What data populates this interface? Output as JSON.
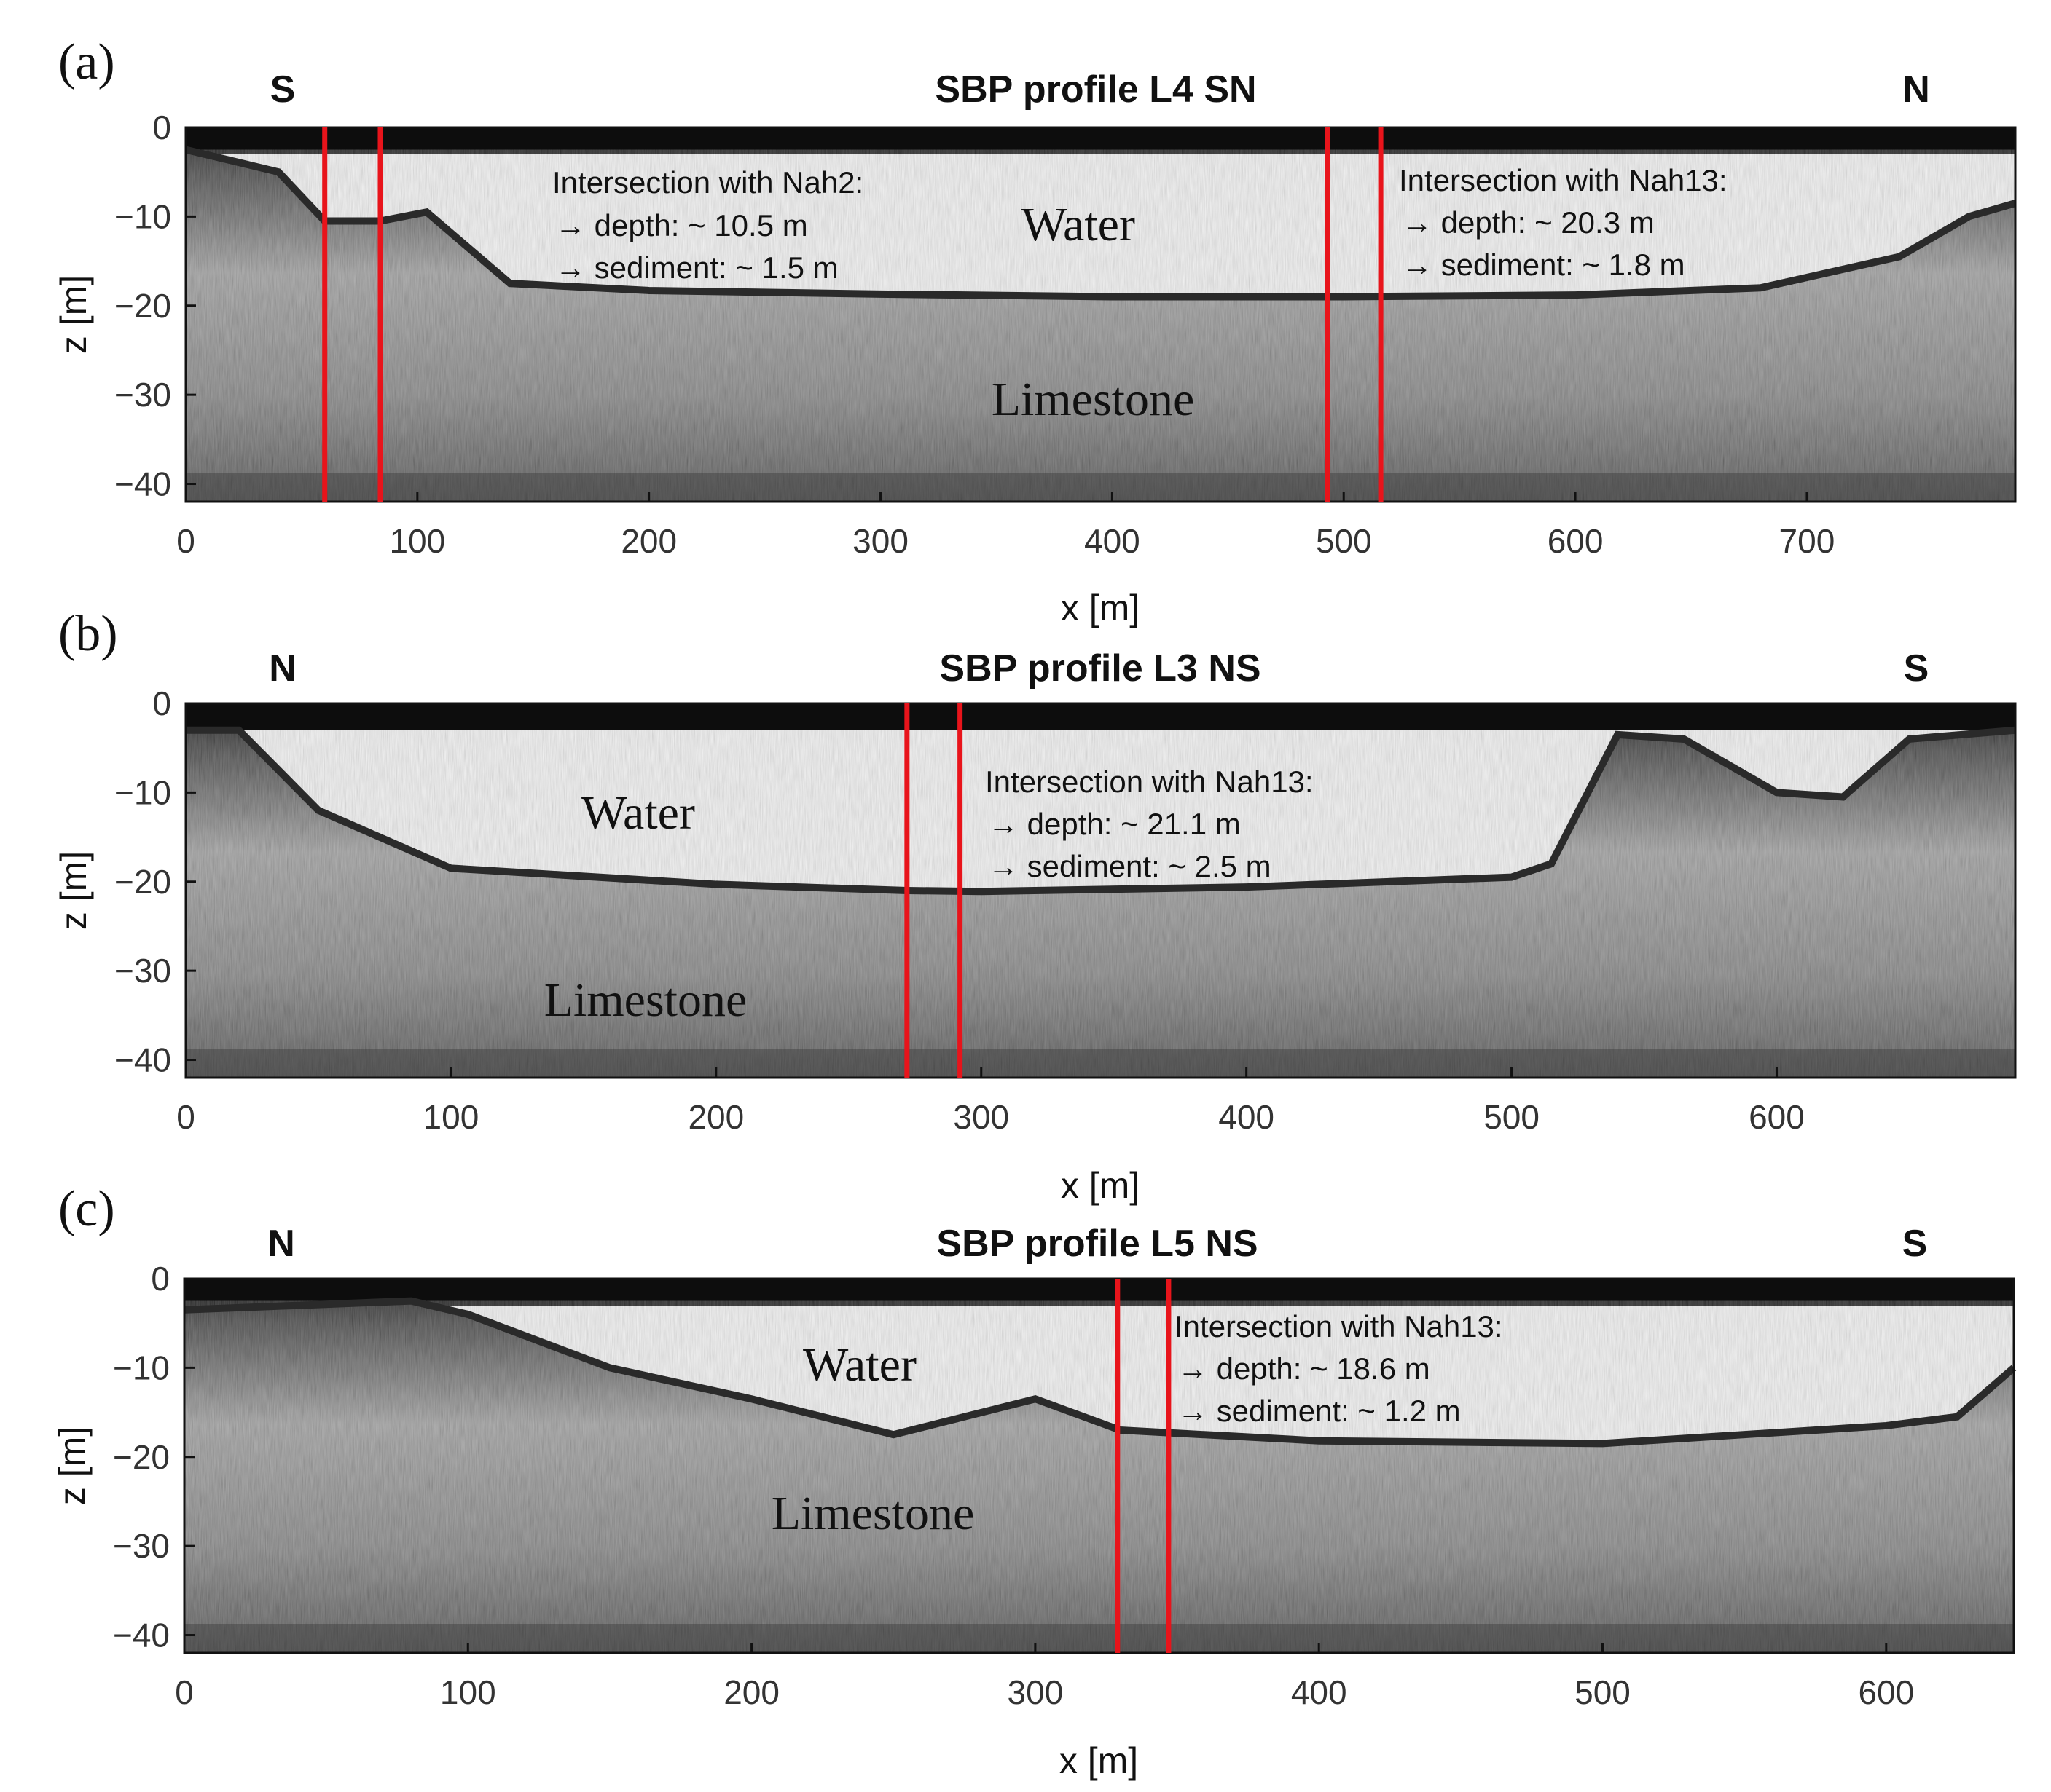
{
  "panels": [
    {
      "letter": "(a)",
      "title": "SBP profile L4 SN",
      "left_dir": "S",
      "right_dir": "N",
      "xlabel": "x [m]",
      "ylabel": "z [m]",
      "xlim": [
        0,
        790
      ],
      "ylim": [
        -42,
        0
      ],
      "xticks": [
        0,
        100,
        200,
        300,
        400,
        500,
        600,
        700
      ],
      "yticks": [
        0,
        -10,
        -20,
        -30,
        -40
      ],
      "intersection_lines_x": [
        60,
        84,
        493,
        516
      ],
      "labels": {
        "water": "Water",
        "limestone": "Limestone"
      },
      "annotations": [
        {
          "title": "Intersection with Nah2:",
          "depth": "→ depth: ~ 10.5 m",
          "sediment": "→ sediment: ~ 1.5 m"
        },
        {
          "title": "Intersection with Nah13:",
          "depth": "→ depth: ~ 20.3 m",
          "sediment": "→ sediment: ~ 1.8 m"
        }
      ]
    },
    {
      "letter": "(b)",
      "title": "SBP profile L3 NS",
      "left_dir": "N",
      "right_dir": "S",
      "xlabel": "x [m]",
      "ylabel": "z [m]",
      "xlim": [
        0,
        690
      ],
      "ylim": [
        -42,
        0
      ],
      "xticks": [
        0,
        100,
        200,
        300,
        400,
        500,
        600
      ],
      "yticks": [
        0,
        -10,
        -20,
        -30,
        -40
      ],
      "intersection_lines_x": [
        272,
        292
      ],
      "labels": {
        "water": "Water",
        "limestone": "Limestone"
      },
      "annotations": [
        {
          "title": "Intersection with Nah13:",
          "depth": "→ depth: ~ 21.1 m",
          "sediment": "→ sediment: ~ 2.5 m"
        }
      ]
    },
    {
      "letter": "(c)",
      "title": "SBP profile L5 NS",
      "left_dir": "N",
      "right_dir": "S",
      "xlabel": "x [m]",
      "ylabel": "z [m]",
      "xlim": [
        0,
        645
      ],
      "ylim": [
        -42,
        0
      ],
      "xticks": [
        0,
        100,
        200,
        300,
        400,
        500,
        600
      ],
      "yticks": [
        0,
        -10,
        -20,
        -30,
        -40
      ],
      "intersection_lines_x": [
        329,
        347
      ],
      "labels": {
        "water": "Water",
        "limestone": "Limestone"
      },
      "annotations": [
        {
          "title": "Intersection with Nah13:",
          "depth": "→ depth: ~ 18.6 m",
          "sediment": "→ sediment: ~ 1.2 m"
        }
      ]
    }
  ],
  "colors": {
    "intersection_line": "#e8141b",
    "water": "#f4f4f4",
    "seabed": "#2a2a2a",
    "text": "#111111"
  },
  "chart_data": [
    {
      "type": "heatmap",
      "title": "SBP profile L4 SN",
      "xlabel": "x [m]",
      "ylabel": "z [m]",
      "xlim": [
        0,
        790
      ],
      "ylim": [
        -42,
        0
      ],
      "seabed_profile": {
        "x": [
          0,
          40,
          60,
          84,
          104,
          140,
          200,
          300,
          400,
          500,
          600,
          680,
          740,
          770,
          790
        ],
        "z": [
          -2.5,
          -5,
          -10.5,
          -10.5,
          -9.5,
          -17.5,
          -18.3,
          -18.7,
          -19.0,
          -19.0,
          -18.8,
          -18.0,
          -14.5,
          -10,
          -8.5
        ]
      },
      "intersection_lines_x": [
        60,
        84,
        493,
        516
      ]
    },
    {
      "type": "heatmap",
      "title": "SBP profile L3 NS",
      "xlabel": "x [m]",
      "ylabel": "z [m]",
      "xlim": [
        0,
        690
      ],
      "ylim": [
        -42,
        0
      ],
      "seabed_profile": {
        "x": [
          0,
          20,
          50,
          100,
          200,
          272,
          300,
          400,
          500,
          515,
          540,
          565,
          600,
          625,
          650,
          690
        ],
        "z": [
          -3,
          -3,
          -12,
          -18.5,
          -20.3,
          -21.0,
          -21.1,
          -20.6,
          -19.5,
          -18,
          -3.5,
          -4,
          -10,
          -10.5,
          -4,
          -3
        ]
      },
      "intersection_lines_x": [
        272,
        292
      ]
    },
    {
      "type": "heatmap",
      "title": "SBP profile L5 NS",
      "xlabel": "x [m]",
      "ylabel": "z [m]",
      "xlim": [
        0,
        645
      ],
      "ylim": [
        -42,
        0
      ],
      "seabed_profile": {
        "x": [
          0,
          40,
          80,
          100,
          150,
          200,
          250,
          300,
          330,
          400,
          500,
          600,
          625,
          645
        ],
        "z": [
          -3.5,
          -3,
          -2.5,
          -4,
          -10,
          -13.5,
          -17.5,
          -13.5,
          -17,
          -18.2,
          -18.5,
          -16.5,
          -15.5,
          -10
        ]
      },
      "intersection_lines_x": [
        329,
        347
      ]
    }
  ]
}
